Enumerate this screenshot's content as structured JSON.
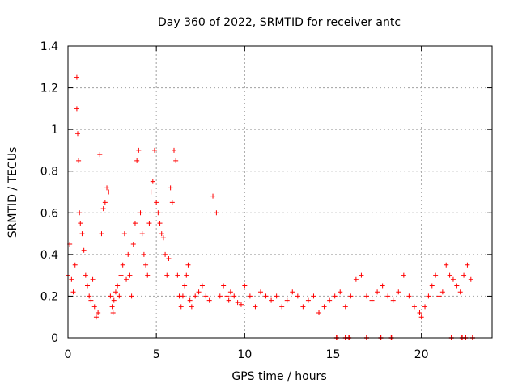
{
  "chart_data": {
    "type": "scatter",
    "title": "Day 360 of 2022, SRMTID for receiver antc",
    "xlabel": "GPS time / hours",
    "ylabel": "SRMTID / TECUs",
    "xlim": [
      0,
      24
    ],
    "ylim": [
      0,
      1.4
    ],
    "grid": true,
    "marker": "+",
    "xticks": [
      0,
      5,
      10,
      15,
      20
    ],
    "xtick_labels": [
      "0",
      "5",
      "10",
      "15",
      "20"
    ],
    "yticks": [
      0,
      0.2,
      0.4,
      0.6,
      0.8,
      1,
      1.2,
      1.4
    ],
    "ytick_labels": [
      "0",
      "0.2",
      "0.4",
      "0.6",
      "0.8",
      "1",
      "1.2",
      "1.4"
    ],
    "series": [
      {
        "name": "SRMTID",
        "color": "#ff0000",
        "x": [
          0.0,
          0.1,
          0.2,
          0.3,
          0.4,
          0.5,
          0.5,
          0.55,
          0.6,
          0.65,
          0.7,
          0.8,
          0.9,
          1.0,
          1.1,
          1.2,
          1.3,
          1.4,
          1.5,
          1.6,
          1.7,
          1.8,
          1.9,
          2.0,
          2.1,
          2.2,
          2.3,
          2.4,
          2.5,
          2.55,
          2.6,
          2.7,
          2.8,
          2.9,
          3.0,
          3.1,
          3.2,
          3.3,
          3.4,
          3.5,
          3.6,
          3.7,
          3.8,
          3.9,
          4.0,
          4.1,
          4.2,
          4.3,
          4.4,
          4.5,
          4.6,
          4.7,
          4.8,
          4.9,
          5.0,
          5.1,
          5.2,
          5.3,
          5.4,
          5.5,
          5.6,
          5.7,
          5.8,
          5.9,
          6.0,
          6.1,
          6.2,
          6.3,
          6.4,
          6.5,
          6.6,
          6.7,
          6.8,
          6.9,
          7.0,
          7.2,
          7.4,
          7.6,
          7.8,
          8.0,
          8.2,
          8.4,
          8.6,
          8.8,
          9.0,
          9.1,
          9.2,
          9.4,
          9.6,
          9.8,
          10.0,
          10.3,
          10.6,
          10.9,
          11.2,
          11.5,
          11.8,
          12.1,
          12.4,
          12.7,
          13.0,
          13.3,
          13.6,
          13.9,
          14.2,
          14.5,
          14.8,
          15.1,
          15.4,
          15.7,
          16.0,
          16.3,
          16.6,
          16.9,
          17.2,
          17.5,
          17.8,
          18.1,
          18.4,
          18.7,
          19.0,
          19.3,
          19.6,
          19.9,
          20.0,
          20.2,
          20.4,
          20.6,
          20.8,
          21.0,
          21.2,
          21.4,
          21.6,
          21.8,
          22.0,
          22.2,
          22.4,
          22.6,
          22.8
        ],
        "y": [
          0.3,
          0.45,
          0.28,
          0.22,
          0.35,
          1.25,
          1.1,
          0.98,
          0.85,
          0.6,
          0.55,
          0.5,
          0.42,
          0.3,
          0.25,
          0.2,
          0.18,
          0.28,
          0.15,
          0.1,
          0.12,
          0.88,
          0.5,
          0.62,
          0.65,
          0.72,
          0.7,
          0.2,
          0.15,
          0.12,
          0.18,
          0.22,
          0.25,
          0.2,
          0.3,
          0.35,
          0.5,
          0.28,
          0.4,
          0.3,
          0.2,
          0.45,
          0.55,
          0.85,
          0.9,
          0.6,
          0.5,
          0.4,
          0.35,
          0.3,
          0.55,
          0.7,
          0.75,
          0.9,
          0.65,
          0.6,
          0.55,
          0.5,
          0.48,
          0.4,
          0.3,
          0.38,
          0.72,
          0.65,
          0.9,
          0.85,
          0.3,
          0.2,
          0.15,
          0.2,
          0.25,
          0.3,
          0.35,
          0.18,
          0.15,
          0.2,
          0.22,
          0.25,
          0.2,
          0.18,
          0.68,
          0.6,
          0.2,
          0.25,
          0.2,
          0.18,
          0.22,
          0.2,
          0.17,
          0.16,
          0.25,
          0.2,
          0.15,
          0.22,
          0.2,
          0.18,
          0.2,
          0.15,
          0.18,
          0.22,
          0.2,
          0.15,
          0.18,
          0.2,
          0.12,
          0.15,
          0.18,
          0.2,
          0.22,
          0.15,
          0.2,
          0.28,
          0.3,
          0.2,
          0.18,
          0.22,
          0.25,
          0.2,
          0.18,
          0.22,
          0.3,
          0.2,
          0.15,
          0.12,
          0.1,
          0.15,
          0.2,
          0.25,
          0.3,
          0.2,
          0.22,
          0.35,
          0.3,
          0.28,
          0.25,
          0.22,
          0.3,
          0.35,
          0.28
        ]
      }
    ],
    "zero_markers_x": [
      15.2,
      15.7,
      15.9,
      16.9,
      17.7,
      18.3,
      21.7,
      22.3,
      22.5,
      22.9
    ]
  }
}
